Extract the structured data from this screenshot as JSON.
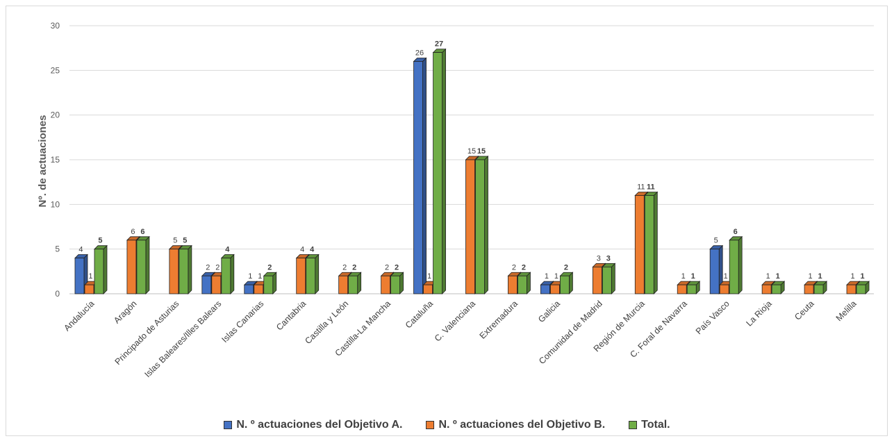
{
  "chart_data": {
    "type": "bar",
    "title": "",
    "xlabel": "",
    "ylabel": "Nº. de actuaciones",
    "ylim": [
      0,
      30
    ],
    "yticks": [
      0,
      5,
      10,
      15,
      20,
      25,
      30
    ],
    "grid": true,
    "legend_position": "bottom",
    "categories": [
      "Andalucía",
      "Aragón",
      "Principado de Asturias",
      "Islas Baleares/Illes Balears",
      "Islas Canarias",
      "Cantabria",
      "Castilla y León",
      "Castilla-La Mancha",
      "Cataluña",
      "C. Valenciana",
      "Extremadura",
      "Galicia",
      "Comunidad de Madrid",
      "Región de Murcia",
      "C. Foral de Navarra",
      "País Vasco",
      "La Rioja",
      "Ceuta",
      "Melilla"
    ],
    "series": [
      {
        "name": "N. º actuaciones del Objetivo A.",
        "color": "#4472c4",
        "values": [
          4,
          null,
          null,
          2,
          1,
          null,
          null,
          null,
          26,
          null,
          null,
          1,
          null,
          null,
          null,
          5,
          null,
          null,
          null
        ]
      },
      {
        "name": "N. º actuaciones del Objetivo B.",
        "color": "#ed7d31",
        "values": [
          1,
          6,
          5,
          2,
          1,
          4,
          2,
          2,
          1,
          15,
          2,
          1,
          3,
          11,
          1,
          1,
          1,
          1,
          1
        ]
      },
      {
        "name": "Total.",
        "color": "#70ad47",
        "values": [
          5,
          6,
          5,
          4,
          2,
          4,
          2,
          2,
          27,
          15,
          2,
          2,
          3,
          11,
          1,
          6,
          1,
          1,
          1
        ]
      }
    ]
  }
}
